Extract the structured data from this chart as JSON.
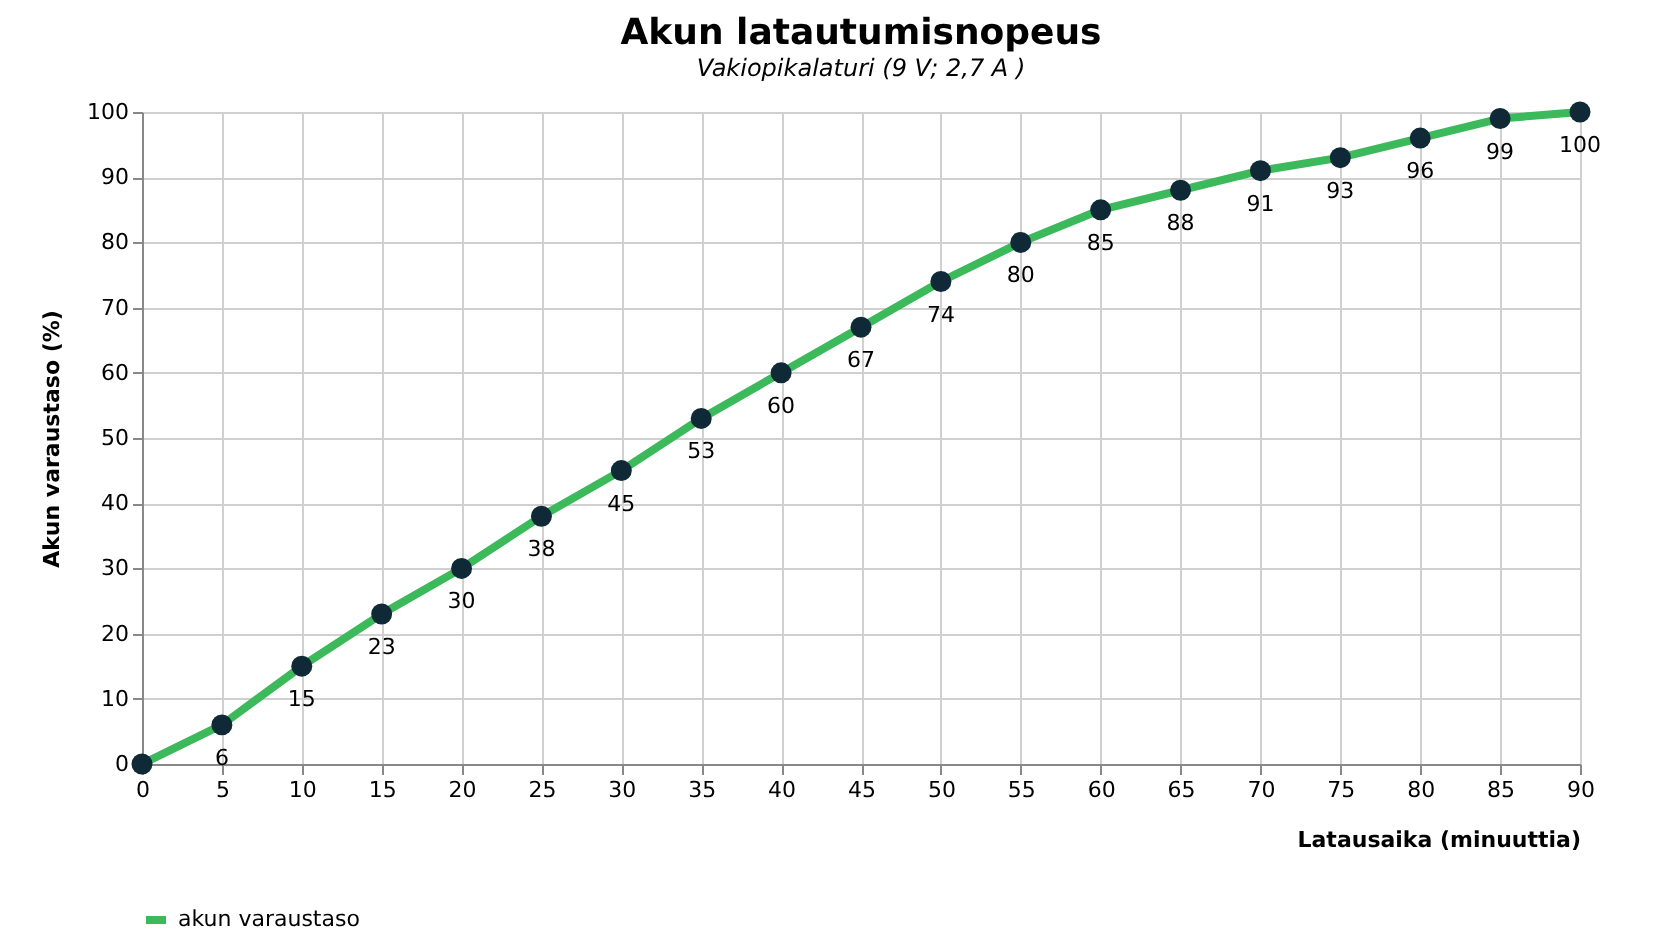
{
  "chart_data": {
    "type": "line",
    "title": "Akun latautumisnopeus",
    "subtitle": "Vakiopikalaturi  (9 V; 2,7 A )",
    "xlabel": "Latausaika  (minuuttia)",
    "ylabel": "Akun varaustaso  (%)",
    "x": [
      0,
      5,
      10,
      15,
      20,
      25,
      30,
      35,
      40,
      45,
      50,
      55,
      60,
      65,
      70,
      75,
      80,
      85,
      90
    ],
    "series": [
      {
        "name": "akun varaustaso",
        "color": "#3cb95a",
        "values": [
          0,
          6,
          15,
          23,
          30,
          38,
          45,
          53,
          60,
          67,
          74,
          80,
          85,
          88,
          91,
          93,
          96,
          99,
          100
        ],
        "value_labels": [
          null,
          "6",
          "15",
          "23",
          "30",
          "38",
          "45",
          "53",
          "60",
          "67",
          "74",
          "80",
          "85",
          "88",
          "91",
          "93",
          "96",
          "99",
          "100"
        ]
      }
    ],
    "xlim": [
      0,
      90
    ],
    "xticks": [
      0,
      5,
      10,
      15,
      20,
      25,
      30,
      35,
      40,
      45,
      50,
      55,
      60,
      65,
      70,
      75,
      80,
      85,
      90
    ],
    "ylim": [
      0,
      100
    ],
    "yticks": [
      0,
      10,
      20,
      30,
      40,
      50,
      60,
      70,
      80,
      90,
      100
    ],
    "grid": true,
    "legend": "bottom",
    "marker": "circle",
    "line_style": "solid"
  }
}
